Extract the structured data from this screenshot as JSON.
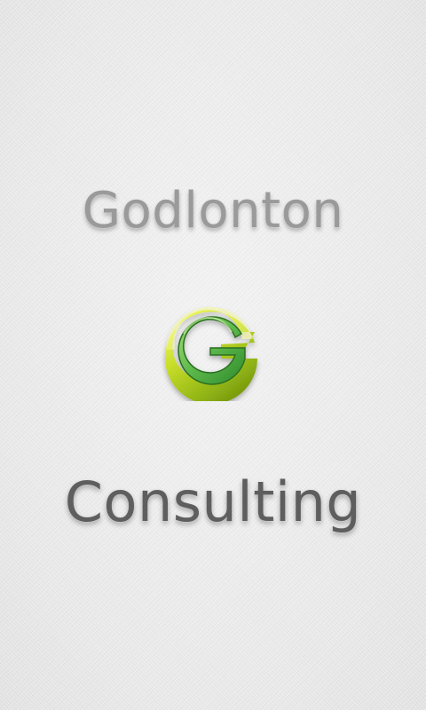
{
  "splash": {
    "title_top": "Godlonton",
    "title_bottom": "Consulting",
    "logo_icon": "letter-g-logo-icon",
    "logo_letter": "G"
  },
  "colors": {
    "background": "#ececec",
    "title_top": "#9a9a9a",
    "title_bottom": "#5e5e5e",
    "logo_outer": "#9fc21a",
    "logo_inner": "#5fb84a",
    "logo_highlight": "#f2f75a"
  }
}
